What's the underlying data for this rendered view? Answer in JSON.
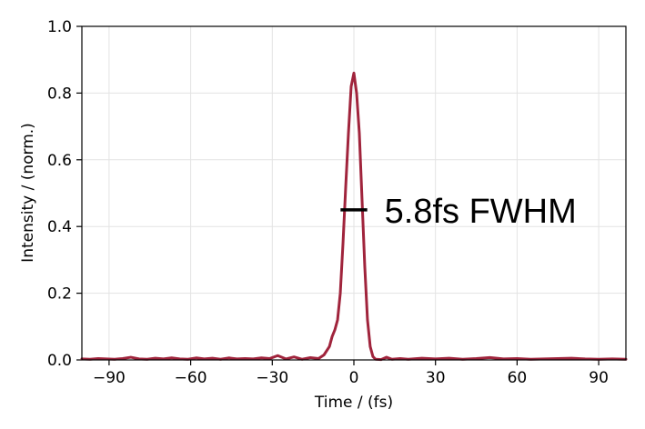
{
  "chart_data": {
    "type": "line",
    "xlabel": "Time / (fs)",
    "ylabel": "Intensity / (norm.)",
    "xlim": [
      -100,
      100
    ],
    "ylim": [
      0,
      1.0
    ],
    "xticks": [
      -90,
      -60,
      -30,
      0,
      30,
      60,
      90
    ],
    "yticks": [
      0.0,
      0.2,
      0.4,
      0.6,
      0.8,
      1.0
    ],
    "xtick_labels": [
      "−90",
      "−60",
      "−30",
      "0",
      "30",
      "60",
      "90"
    ],
    "ytick_labels": [
      "0.0",
      "0.2",
      "0.4",
      "0.6",
      "0.8",
      "1.0"
    ],
    "grid": true,
    "color": "#a0243c",
    "series": [
      {
        "x": [
          -100,
          -97,
          -94,
          -91,
          -88,
          -85,
          -82,
          -79,
          -76,
          -73,
          -70,
          -67,
          -64,
          -61,
          -58,
          -55,
          -52,
          -49,
          -46,
          -43,
          -40,
          -37,
          -34,
          -31,
          -28,
          -25,
          -22,
          -19,
          -16,
          -13,
          -11,
          -9,
          -8,
          -7,
          -6,
          -5,
          -4,
          -3,
          -2,
          -1,
          0,
          1,
          2,
          3,
          4,
          5,
          6,
          7,
          8,
          10,
          12,
          14,
          17,
          20,
          25,
          30,
          35,
          40,
          45,
          50,
          55,
          60,
          65,
          70,
          75,
          80,
          85,
          90,
          95,
          100
        ],
        "y": [
          0.003,
          0.002,
          0.004,
          0.003,
          0.002,
          0.004,
          0.008,
          0.003,
          0.002,
          0.005,
          0.003,
          0.006,
          0.003,
          0.002,
          0.006,
          0.003,
          0.005,
          0.002,
          0.006,
          0.003,
          0.004,
          0.003,
          0.006,
          0.004,
          0.013,
          0.003,
          0.009,
          0.002,
          0.007,
          0.004,
          0.015,
          0.04,
          0.07,
          0.09,
          0.12,
          0.2,
          0.35,
          0.52,
          0.68,
          0.82,
          0.86,
          0.8,
          0.68,
          0.48,
          0.28,
          0.12,
          0.04,
          0.01,
          0.002,
          0.001,
          0.008,
          0.002,
          0.004,
          0.002,
          0.005,
          0.003,
          0.005,
          0.002,
          0.004,
          0.007,
          0.003,
          0.004,
          0.002,
          0.003,
          0.004,
          0.005,
          0.003,
          0.002,
          0.003,
          0.002
        ]
      }
    ],
    "annotations": [
      {
        "text": "5.8fs FWHM",
        "x_start": -2.9,
        "x_end": 2.9,
        "y": 0.45
      }
    ]
  }
}
